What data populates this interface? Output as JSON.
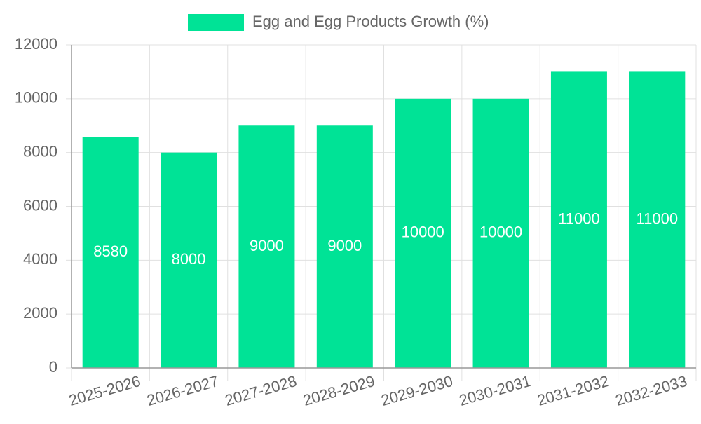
{
  "chart_data": {
    "type": "bar",
    "categories": [
      "2025-2026",
      "2026-2027",
      "2027-2028",
      "2028-2029",
      "2029-2030",
      "2030-2031",
      "2031-2032",
      "2032-2033"
    ],
    "series": [
      {
        "name": "Egg and Egg Products Growth (%)",
        "values": [
          8580,
          8000,
          9000,
          9000,
          10000,
          10000,
          11000,
          11000
        ],
        "color": "#00e396"
      }
    ],
    "ylim": [
      0,
      12000
    ],
    "yticks": [
      "0",
      "2000",
      "4000",
      "6000",
      "8000",
      "10000",
      "12000"
    ],
    "data_labels": [
      "8580",
      "8000",
      "9000",
      "9000",
      "10000",
      "10000",
      "11000",
      "11000"
    ],
    "grid": true,
    "legend_position": "top-center",
    "colors": {
      "bar": "#00e396",
      "grid": "#e0e0e0",
      "axis": "#999999",
      "text": "#666666",
      "data_label": "#ffffff"
    }
  }
}
